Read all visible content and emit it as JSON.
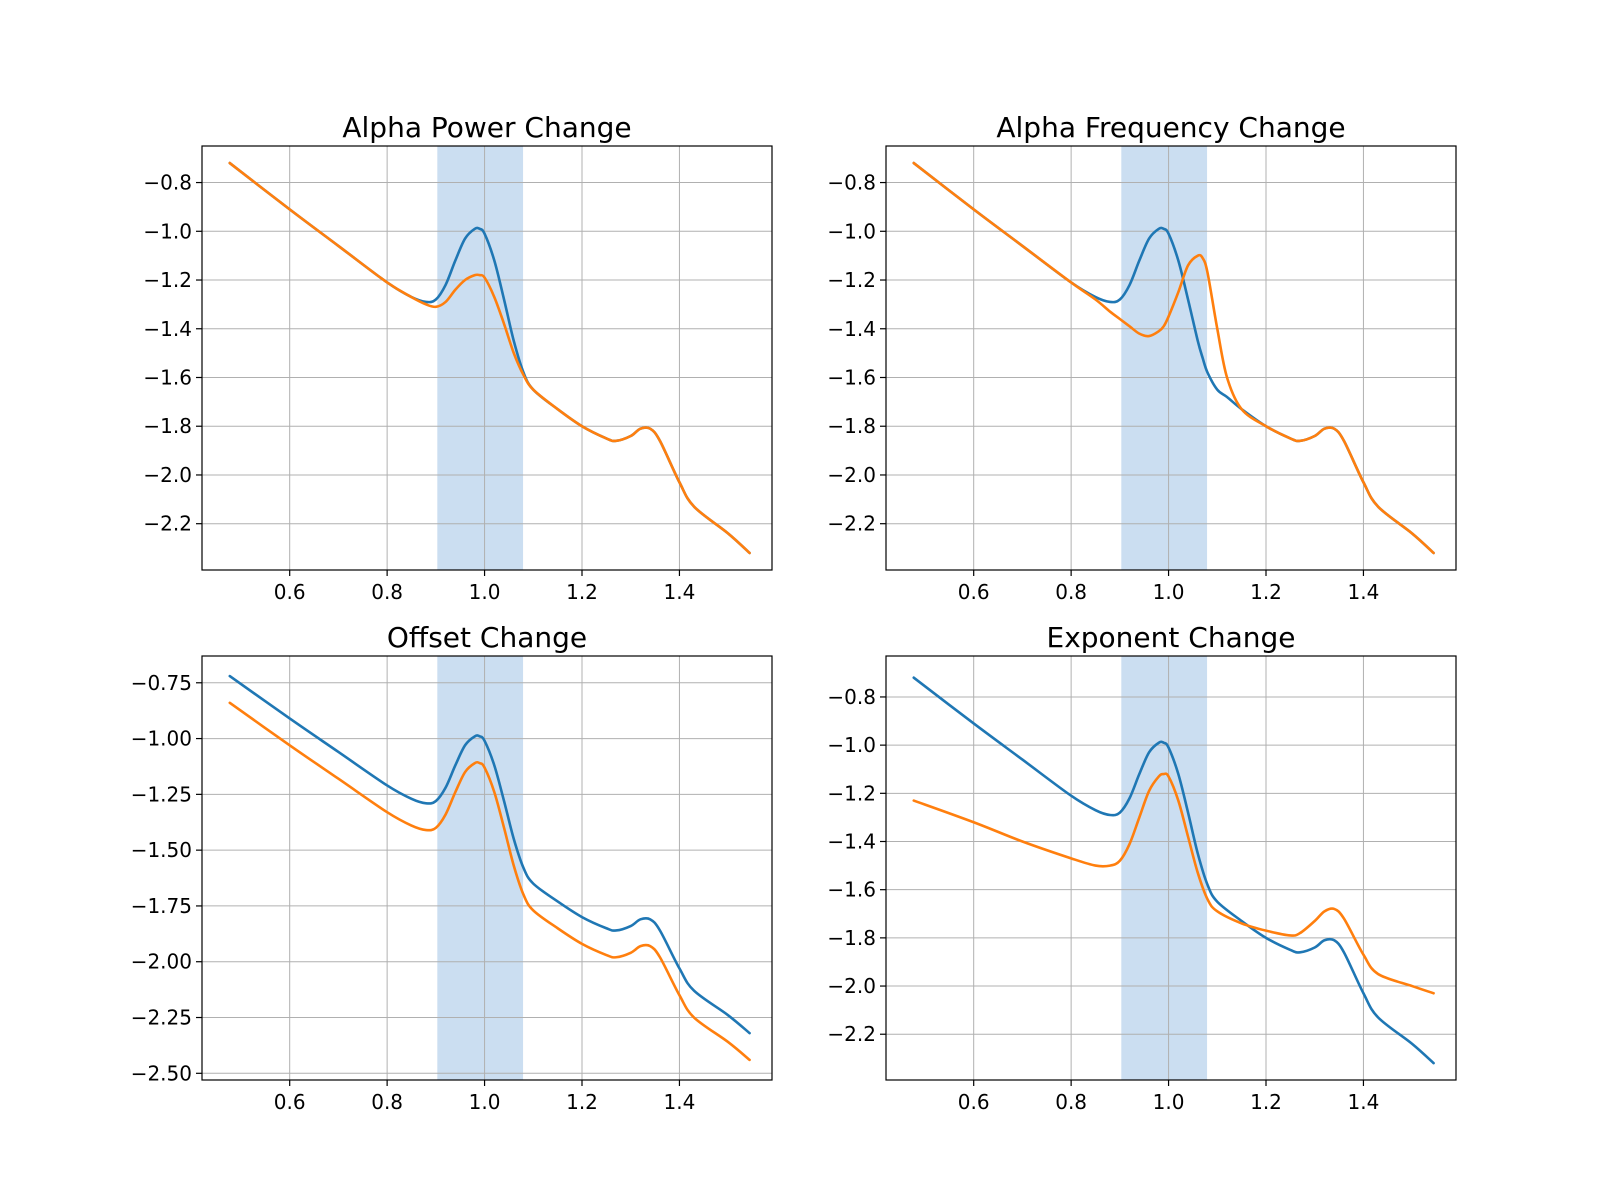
{
  "figure": {
    "band_color": "#a8c8e8",
    "series_colors": [
      "#1f77b4",
      "#ff7f0e"
    ]
  },
  "chart_data": [
    {
      "type": "line",
      "title": "Alpha Power Change",
      "xlabel": "",
      "ylabel": "",
      "xlim": [
        0.42,
        1.59
      ],
      "ylim": [
        -2.39,
        -0.65
      ],
      "xticks": [
        0.6,
        0.8,
        1.0,
        1.2,
        1.4
      ],
      "xtick_labels": [
        "0.6",
        "0.8",
        "1.0",
        "1.2",
        "1.4"
      ],
      "yticks": [
        -0.8,
        -1.0,
        -1.2,
        -1.4,
        -1.6,
        -1.8,
        -2.0,
        -2.2
      ],
      "ytick_labels": [
        "−0.8",
        "−1.0",
        "−1.2",
        "−1.4",
        "−1.6",
        "−1.8",
        "−2.0",
        "−2.2"
      ],
      "grid": true,
      "shaded_band": [
        0.903,
        1.079
      ],
      "x": [
        0.477,
        0.6,
        0.7,
        0.8,
        0.85,
        0.88,
        0.9,
        0.92,
        0.94,
        0.96,
        0.98,
        0.99,
        1.0,
        1.02,
        1.04,
        1.06,
        1.08,
        1.1,
        1.15,
        1.2,
        1.25,
        1.27,
        1.3,
        1.32,
        1.34,
        1.36,
        1.4,
        1.43,
        1.5,
        1.544
      ],
      "series": [
        {
          "values": [
            -0.72,
            -0.91,
            -1.06,
            -1.21,
            -1.27,
            -1.29,
            -1.28,
            -1.22,
            -1.12,
            -1.03,
            -0.99,
            -0.99,
            -1.01,
            -1.12,
            -1.28,
            -1.45,
            -1.58,
            -1.65,
            -1.73,
            -1.8,
            -1.85,
            -1.86,
            -1.84,
            -1.81,
            -1.81,
            -1.86,
            -2.03,
            -2.13,
            -2.24,
            -2.32
          ]
        },
        {
          "values": [
            -0.72,
            -0.91,
            -1.06,
            -1.21,
            -1.27,
            -1.3,
            -1.31,
            -1.29,
            -1.24,
            -1.2,
            -1.18,
            -1.18,
            -1.19,
            -1.27,
            -1.38,
            -1.5,
            -1.59,
            -1.65,
            -1.73,
            -1.8,
            -1.85,
            -1.86,
            -1.84,
            -1.81,
            -1.81,
            -1.86,
            -2.03,
            -2.13,
            -2.24,
            -2.32
          ]
        }
      ]
    },
    {
      "type": "line",
      "title": "Alpha Frequency Change",
      "xlabel": "",
      "ylabel": "",
      "xlim": [
        0.42,
        1.59
      ],
      "ylim": [
        -2.39,
        -0.65
      ],
      "xticks": [
        0.6,
        0.8,
        1.0,
        1.2,
        1.4
      ],
      "xtick_labels": [
        "0.6",
        "0.8",
        "1.0",
        "1.2",
        "1.4"
      ],
      "yticks": [
        -0.8,
        -1.0,
        -1.2,
        -1.4,
        -1.6,
        -1.8,
        -2.0,
        -2.2
      ],
      "ytick_labels": [
        "−0.8",
        "−1.0",
        "−1.2",
        "−1.4",
        "−1.6",
        "−1.8",
        "−2.0",
        "−2.2"
      ],
      "grid": true,
      "shaded_band": [
        0.903,
        1.079
      ],
      "x": [
        0.477,
        0.6,
        0.7,
        0.8,
        0.85,
        0.88,
        0.9,
        0.92,
        0.94,
        0.96,
        0.98,
        0.99,
        1.0,
        1.02,
        1.04,
        1.06,
        1.07,
        1.08,
        1.1,
        1.12,
        1.15,
        1.2,
        1.25,
        1.27,
        1.3,
        1.32,
        1.34,
        1.36,
        1.4,
        1.43,
        1.5,
        1.544
      ],
      "series": [
        {
          "values": [
            -0.72,
            -0.91,
            -1.06,
            -1.21,
            -1.27,
            -1.29,
            -1.28,
            -1.22,
            -1.12,
            -1.03,
            -0.99,
            -0.99,
            -1.01,
            -1.12,
            -1.28,
            -1.45,
            -1.52,
            -1.58,
            -1.65,
            -1.68,
            -1.73,
            -1.8,
            -1.85,
            -1.86,
            -1.84,
            -1.81,
            -1.81,
            -1.86,
            -2.03,
            -2.13,
            -2.24,
            -2.32
          ]
        },
        {
          "values": [
            -0.72,
            -0.91,
            -1.06,
            -1.21,
            -1.28,
            -1.33,
            -1.36,
            -1.39,
            -1.42,
            -1.43,
            -1.41,
            -1.39,
            -1.35,
            -1.25,
            -1.14,
            -1.1,
            -1.11,
            -1.17,
            -1.4,
            -1.6,
            -1.73,
            -1.8,
            -1.85,
            -1.86,
            -1.84,
            -1.81,
            -1.81,
            -1.86,
            -2.03,
            -2.13,
            -2.24,
            -2.32
          ]
        }
      ]
    },
    {
      "type": "line",
      "title": "Offset Change",
      "xlabel": "",
      "ylabel": "",
      "xlim": [
        0.42,
        1.59
      ],
      "ylim": [
        -2.53,
        -0.63
      ],
      "xticks": [
        0.6,
        0.8,
        1.0,
        1.2,
        1.4
      ],
      "xtick_labels": [
        "0.6",
        "0.8",
        "1.0",
        "1.2",
        "1.4"
      ],
      "yticks": [
        -0.75,
        -1.0,
        -1.25,
        -1.5,
        -1.75,
        -2.0,
        -2.25,
        -2.5
      ],
      "ytick_labels": [
        "−0.75",
        "−1.00",
        "−1.25",
        "−1.50",
        "−1.75",
        "−2.00",
        "−2.25",
        "−2.50"
      ],
      "grid": true,
      "shaded_band": [
        0.903,
        1.079
      ],
      "x": [
        0.477,
        0.6,
        0.7,
        0.8,
        0.85,
        0.88,
        0.9,
        0.92,
        0.94,
        0.96,
        0.98,
        0.99,
        1.0,
        1.02,
        1.04,
        1.06,
        1.08,
        1.1,
        1.15,
        1.2,
        1.25,
        1.27,
        1.3,
        1.32,
        1.34,
        1.36,
        1.4,
        1.43,
        1.5,
        1.544
      ],
      "series": [
        {
          "values": [
            -0.72,
            -0.91,
            -1.06,
            -1.21,
            -1.27,
            -1.29,
            -1.28,
            -1.22,
            -1.12,
            -1.03,
            -0.99,
            -0.99,
            -1.01,
            -1.12,
            -1.28,
            -1.45,
            -1.58,
            -1.65,
            -1.73,
            -1.8,
            -1.85,
            -1.86,
            -1.84,
            -1.81,
            -1.81,
            -1.86,
            -2.03,
            -2.13,
            -2.24,
            -2.32
          ]
        },
        {
          "values": [
            -0.84,
            -1.03,
            -1.18,
            -1.33,
            -1.39,
            -1.41,
            -1.4,
            -1.34,
            -1.24,
            -1.15,
            -1.11,
            -1.11,
            -1.13,
            -1.24,
            -1.4,
            -1.57,
            -1.7,
            -1.77,
            -1.85,
            -1.92,
            -1.97,
            -1.98,
            -1.96,
            -1.93,
            -1.93,
            -1.98,
            -2.15,
            -2.25,
            -2.36,
            -2.44
          ]
        }
      ]
    },
    {
      "type": "line",
      "title": "Exponent Change",
      "xlabel": "",
      "ylabel": "",
      "xlim": [
        0.42,
        1.59
      ],
      "ylim": [
        -2.39,
        -0.63
      ],
      "xticks": [
        0.6,
        0.8,
        1.0,
        1.2,
        1.4
      ],
      "xtick_labels": [
        "0.6",
        "0.8",
        "1.0",
        "1.2",
        "1.4"
      ],
      "yticks": [
        -0.8,
        -1.0,
        -1.2,
        -1.4,
        -1.6,
        -1.8,
        -2.0,
        -2.2
      ],
      "ytick_labels": [
        "−0.8",
        "−1.0",
        "−1.2",
        "−1.4",
        "−1.6",
        "−1.8",
        "−2.0",
        "−2.2"
      ],
      "grid": true,
      "shaded_band": [
        0.903,
        1.079
      ],
      "x": [
        0.477,
        0.6,
        0.7,
        0.8,
        0.85,
        0.88,
        0.9,
        0.92,
        0.94,
        0.96,
        0.98,
        0.99,
        1.0,
        1.02,
        1.04,
        1.06,
        1.08,
        1.1,
        1.15,
        1.2,
        1.25,
        1.27,
        1.3,
        1.32,
        1.34,
        1.36,
        1.4,
        1.43,
        1.5,
        1.544
      ],
      "series": [
        {
          "values": [
            -0.72,
            -0.91,
            -1.06,
            -1.21,
            -1.27,
            -1.29,
            -1.28,
            -1.22,
            -1.12,
            -1.03,
            -0.99,
            -0.99,
            -1.01,
            -1.12,
            -1.28,
            -1.45,
            -1.58,
            -1.65,
            -1.73,
            -1.8,
            -1.85,
            -1.86,
            -1.84,
            -1.81,
            -1.81,
            -1.86,
            -2.03,
            -2.13,
            -2.24,
            -2.32
          ]
        },
        {
          "values": [
            -1.23,
            -1.32,
            -1.4,
            -1.47,
            -1.5,
            -1.5,
            -1.48,
            -1.41,
            -1.3,
            -1.19,
            -1.13,
            -1.12,
            -1.13,
            -1.23,
            -1.38,
            -1.53,
            -1.64,
            -1.69,
            -1.74,
            -1.77,
            -1.79,
            -1.78,
            -1.73,
            -1.69,
            -1.68,
            -1.72,
            -1.87,
            -1.95,
            -2.0,
            -2.03
          ]
        }
      ]
    }
  ]
}
